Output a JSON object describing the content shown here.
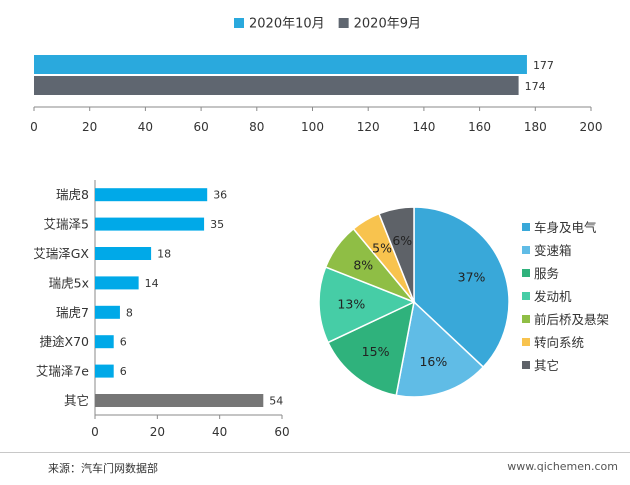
{
  "colors": {
    "oct": "#2aa9dd",
    "sep": "#5f6670",
    "bar_main": "#00a9e8",
    "bar_other": "#767676",
    "pie": [
      "#39a8d9",
      "#60bce6",
      "#2fb27c",
      "#46cda6",
      "#8fbe45",
      "#f8c34e",
      "#5e6268"
    ]
  },
  "chart_data": [
    {
      "type": "bar",
      "orientation": "horizontal",
      "series": [
        {
          "name": "2020年10月",
          "values": [
            177
          ]
        },
        {
          "name": "2020年9月",
          "values": [
            174
          ]
        }
      ],
      "xlim": [
        0,
        200
      ],
      "xticks": [
        0,
        20,
        40,
        60,
        80,
        100,
        120,
        140,
        160,
        180,
        200
      ],
      "legend": "top"
    },
    {
      "type": "bar",
      "orientation": "horizontal",
      "categories": [
        "瑞虎8",
        "艾瑞泽5",
        "艾瑞泽GX",
        "瑞虎5x",
        "瑞虎7",
        "捷途X70",
        "艾瑞泽7e",
        "其它"
      ],
      "values": [
        36,
        35,
        18,
        14,
        8,
        6,
        6,
        54
      ],
      "xlim": [
        0,
        60
      ],
      "xticks": [
        0,
        20,
        40,
        60
      ]
    },
    {
      "type": "pie",
      "labels": [
        "车身及电气",
        "变速箱",
        "服务",
        "发动机",
        "前后桥及悬架",
        "转向系统",
        "其它"
      ],
      "values": [
        37,
        16,
        15,
        13,
        8,
        5,
        6
      ],
      "value_labels": [
        "37%",
        "16%",
        "15%",
        "13%",
        "8%",
        "5%",
        "6%"
      ],
      "legend": "right"
    }
  ],
  "footer": {
    "source": "来源：汽车门网数据部",
    "site": "www.qichemen.com"
  }
}
